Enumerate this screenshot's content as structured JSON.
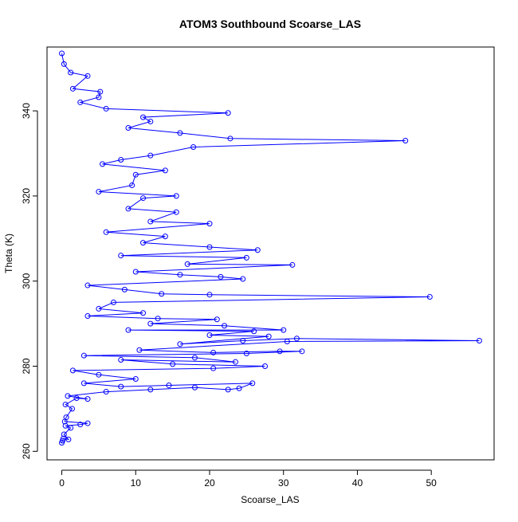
{
  "chart_data": {
    "type": "scatter",
    "title": "ATOM3 Southbound Scoarse_LAS",
    "xlabel": "Scoarse_LAS",
    "ylabel": "Theta (K)",
    "xlim": [
      -2,
      58.5
    ],
    "ylim": [
      258,
      355
    ],
    "x_ticks": [
      0,
      10,
      20,
      30,
      40,
      50
    ],
    "y_ticks": [
      260,
      280,
      300,
      320,
      340
    ],
    "grid": false,
    "legend": "none",
    "marker": "open-circle",
    "connected_by_lines": true,
    "colors": {
      "series": "#0000ff",
      "axis": "#000000",
      "background": "#ffffff"
    },
    "series": [
      {
        "values": [
          {
            "x": 0.0,
            "y": 262
          },
          {
            "x": 0.1,
            "y": 262.5
          },
          {
            "x": 0.2,
            "y": 263
          },
          {
            "x": 0.9,
            "y": 262.8
          },
          {
            "x": 0.3,
            "y": 264
          },
          {
            "x": 1.2,
            "y": 265.5
          },
          {
            "x": 0.5,
            "y": 266
          },
          {
            "x": 2.5,
            "y": 266.3
          },
          {
            "x": 3.5,
            "y": 266.6
          },
          {
            "x": 0.4,
            "y": 267
          },
          {
            "x": 0.6,
            "y": 268
          },
          {
            "x": 1.4,
            "y": 270
          },
          {
            "x": 0.5,
            "y": 271
          },
          {
            "x": 2.0,
            "y": 272.5
          },
          {
            "x": 3.5,
            "y": 272.3
          },
          {
            "x": 0.8,
            "y": 273
          },
          {
            "x": 6.0,
            "y": 274
          },
          {
            "x": 12.0,
            "y": 274.5
          },
          {
            "x": 18.0,
            "y": 275.0
          },
          {
            "x": 22.5,
            "y": 274.5
          },
          {
            "x": 24.0,
            "y": 274.8
          },
          {
            "x": 25.8,
            "y": 276.0
          },
          {
            "x": 14.5,
            "y": 275.5
          },
          {
            "x": 8.0,
            "y": 275.2
          },
          {
            "x": 3.0,
            "y": 276
          },
          {
            "x": 10.0,
            "y": 277.0
          },
          {
            "x": 5.0,
            "y": 278.0
          },
          {
            "x": 1.5,
            "y": 279
          },
          {
            "x": 20.5,
            "y": 279.5
          },
          {
            "x": 27.5,
            "y": 280.0
          },
          {
            "x": 15.0,
            "y": 280.5
          },
          {
            "x": 8.0,
            "y": 281.5
          },
          {
            "x": 23.5,
            "y": 281.0
          },
          {
            "x": 18.0,
            "y": 282.0
          },
          {
            "x": 3.0,
            "y": 282.5
          },
          {
            "x": 25.0,
            "y": 283.0
          },
          {
            "x": 32.5,
            "y": 283.5
          },
          {
            "x": 29.5,
            "y": 283.5
          },
          {
            "x": 20.5,
            "y": 283.2
          },
          {
            "x": 10.5,
            "y": 283.8
          },
          {
            "x": 30.5,
            "y": 285.8
          },
          {
            "x": 56.5,
            "y": 286.0
          },
          {
            "x": 31.8,
            "y": 286.5
          },
          {
            "x": 24.5,
            "y": 286.0
          },
          {
            "x": 16.0,
            "y": 285.2
          },
          {
            "x": 28.0,
            "y": 287.0
          },
          {
            "x": 20.0,
            "y": 287.3
          },
          {
            "x": 26.0,
            "y": 288.2
          },
          {
            "x": 9.0,
            "y": 288.5
          },
          {
            "x": 30.0,
            "y": 288.5
          },
          {
            "x": 22.0,
            "y": 289.5
          },
          {
            "x": 12.0,
            "y": 290.0
          },
          {
            "x": 21.0,
            "y": 291.0
          },
          {
            "x": 13.0,
            "y": 291.2
          },
          {
            "x": 3.5,
            "y": 291.8
          },
          {
            "x": 11.0,
            "y": 292.5
          },
          {
            "x": 5.0,
            "y": 293.5
          },
          {
            "x": 7.0,
            "y": 295.0
          },
          {
            "x": 49.8,
            "y": 296.3
          },
          {
            "x": 20.0,
            "y": 296.8
          },
          {
            "x": 13.5,
            "y": 297.0
          },
          {
            "x": 8.5,
            "y": 298.0
          },
          {
            "x": 3.5,
            "y": 299.0
          },
          {
            "x": 24.5,
            "y": 300.5
          },
          {
            "x": 21.5,
            "y": 301.0
          },
          {
            "x": 16.0,
            "y": 301.5
          },
          {
            "x": 10.0,
            "y": 302.2
          },
          {
            "x": 31.2,
            "y": 303.8
          },
          {
            "x": 17.0,
            "y": 304.0
          },
          {
            "x": 25.0,
            "y": 305.5
          },
          {
            "x": 8.0,
            "y": 306.0
          },
          {
            "x": 26.5,
            "y": 307.3
          },
          {
            "x": 20.0,
            "y": 308.0
          },
          {
            "x": 11.0,
            "y": 309.0
          },
          {
            "x": 14.0,
            "y": 310.5
          },
          {
            "x": 6.0,
            "y": 311.5
          },
          {
            "x": 20.0,
            "y": 313.5
          },
          {
            "x": 12.0,
            "y": 314.0
          },
          {
            "x": 15.5,
            "y": 316.2
          },
          {
            "x": 9.0,
            "y": 317.0
          },
          {
            "x": 11.0,
            "y": 319.5
          },
          {
            "x": 15.5,
            "y": 320.0
          },
          {
            "x": 5.0,
            "y": 321.0
          },
          {
            "x": 9.5,
            "y": 322.5
          },
          {
            "x": 10.0,
            "y": 325.0
          },
          {
            "x": 14.0,
            "y": 326.0
          },
          {
            "x": 5.5,
            "y": 327.5
          },
          {
            "x": 8.0,
            "y": 328.5
          },
          {
            "x": 12.0,
            "y": 329.5
          },
          {
            "x": 17.8,
            "y": 331.5
          },
          {
            "x": 46.5,
            "y": 333.0
          },
          {
            "x": 22.8,
            "y": 333.5
          },
          {
            "x": 16.0,
            "y": 334.8
          },
          {
            "x": 9.0,
            "y": 336.0
          },
          {
            "x": 12.0,
            "y": 337.5
          },
          {
            "x": 11.0,
            "y": 338.5
          },
          {
            "x": 22.5,
            "y": 339.5
          },
          {
            "x": 6.0,
            "y": 340.5
          },
          {
            "x": 2.5,
            "y": 342.0
          },
          {
            "x": 5.0,
            "y": 343.2
          },
          {
            "x": 5.2,
            "y": 344.5
          },
          {
            "x": 1.5,
            "y": 345.2
          },
          {
            "x": 3.5,
            "y": 348.2
          },
          {
            "x": 1.2,
            "y": 349.0
          },
          {
            "x": 0.3,
            "y": 351.0
          },
          {
            "x": 0.0,
            "y": 353.5
          }
        ]
      }
    ]
  }
}
